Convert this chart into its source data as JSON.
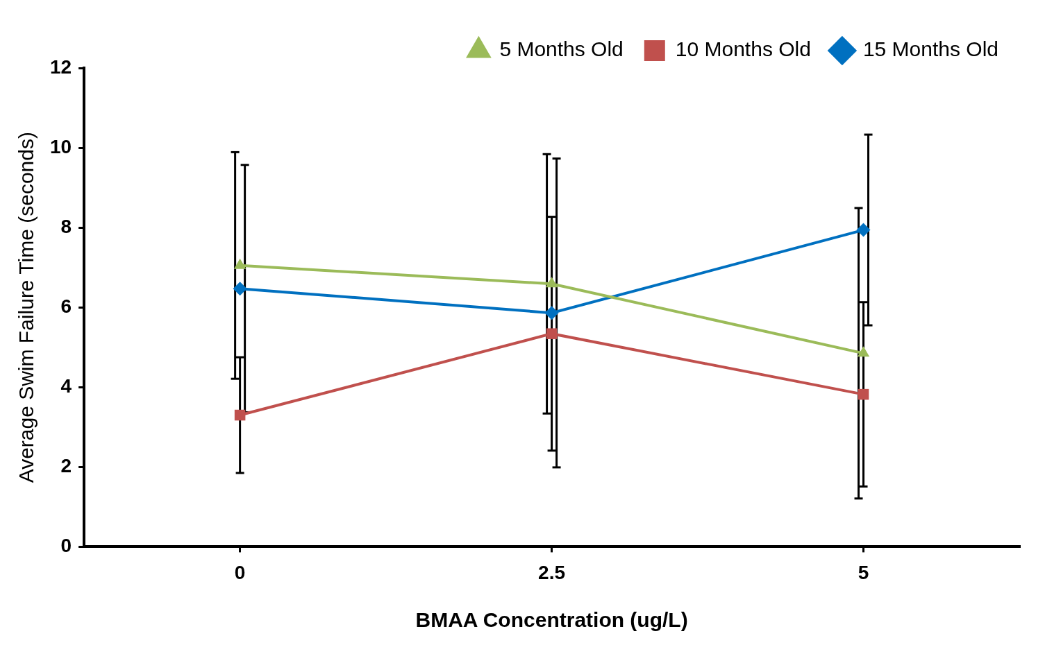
{
  "chart_data": {
    "type": "line",
    "xlabel": "BMAA Concentration (ug/L)",
    "ylabel": "Average Swim Failure Time (seconds)",
    "categories": [
      "0",
      "2.5",
      "5"
    ],
    "ylim": [
      0,
      12
    ],
    "yticks": [
      0,
      2,
      4,
      6,
      8,
      10,
      12
    ],
    "grid": false,
    "legend": "top right",
    "series": [
      {
        "name": "5 Months Old",
        "color": "#9bbb59",
        "marker": "triangle",
        "values": [
          7.05,
          6.59,
          4.85
        ],
        "errors": [
          2.84,
          3.25,
          3.64
        ]
      },
      {
        "name": "10 Months Old",
        "color": "#c0504d",
        "marker": "square",
        "values": [
          3.3,
          5.34,
          3.82
        ],
        "errors": [
          1.45,
          2.93,
          2.31
        ]
      },
      {
        "name": "15 Months Old",
        "color": "#0070c0",
        "marker": "diamond",
        "values": [
          6.47,
          5.86,
          7.94
        ],
        "errors": [
          3.1,
          3.87,
          2.39
        ]
      }
    ]
  }
}
